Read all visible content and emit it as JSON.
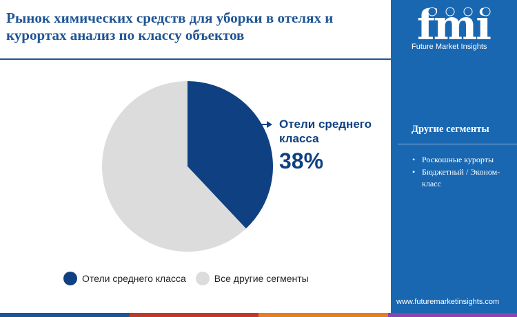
{
  "header": {
    "title": "Рынок химических средств для уборки в отелях и курортах анализ по классу объектов"
  },
  "brand": {
    "logo_letters": "fmi",
    "logo_text": "Future Market Insights",
    "website": "www.futuremarketinsights.com"
  },
  "sidebar": {
    "heading": "Другие сегменты",
    "items": [
      "Роскошные курорты",
      "Бюджетный / Эконом-класс"
    ]
  },
  "callout": {
    "label": "Отели среднего класса",
    "value": "38%"
  },
  "legend": [
    {
      "label": "Отели среднего класса",
      "color": "#0f4182"
    },
    {
      "label": "Все другие сегменты",
      "color": "#dcdcdc"
    }
  ],
  "colors": {
    "primary": "#0f4182",
    "secondary": "#dcdcdc",
    "sidebar": "#1a67b1",
    "title": "#1f5594",
    "bottom_bar": [
      "#1f5594",
      "#c0392b",
      "#e67e22",
      "#8e44ad"
    ]
  },
  "chart_data": {
    "type": "pie",
    "title": "",
    "categories": [
      "Отели среднего класса",
      "Все другие сегменты"
    ],
    "values": [
      38,
      62
    ],
    "unit": "%",
    "legend_position": "bottom"
  }
}
